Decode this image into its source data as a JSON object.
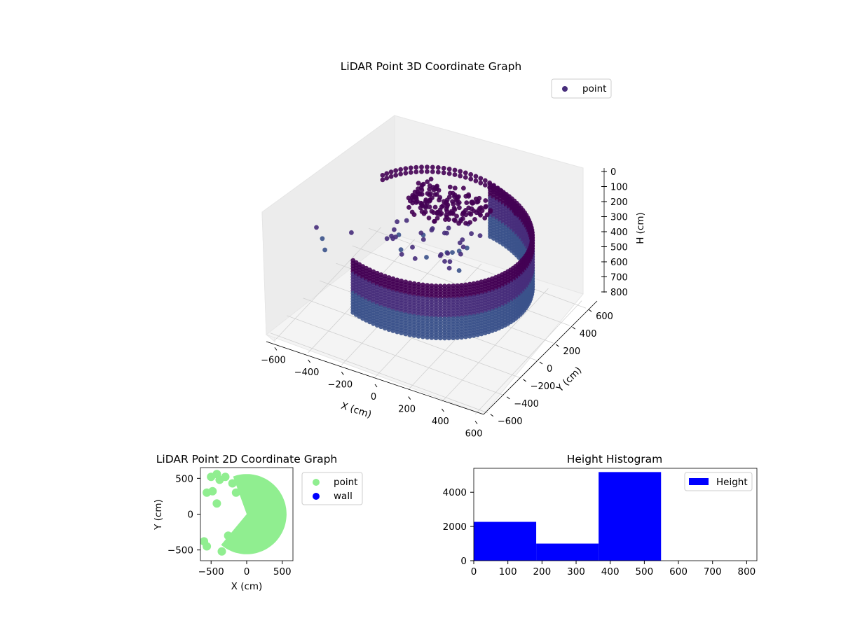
{
  "colors": {
    "viridis_dark": "#440154",
    "viridis_mid": "#3b528b",
    "viridis_blue": "#31688e",
    "viridis_teal": "#35b779",
    "point_2d": "#90ee90",
    "wall_2d": "#0000ff",
    "hist_bar": "#0000ff"
  },
  "chart_data": [
    {
      "type": "scatter",
      "projection": "3d",
      "title": "LiDAR Point 3D Coordinate Graph",
      "xlabel": "X (cm)",
      "ylabel": "Y (cm)",
      "zlabel": "H (cm)",
      "xticks": [
        "−600",
        "−400",
        "−200",
        "0",
        "200",
        "400",
        "600"
      ],
      "yticks": [
        "−600",
        "−400",
        "−200",
        "0",
        "200",
        "400",
        "600"
      ],
      "zticks": [
        "0",
        "100",
        "200",
        "300",
        "400",
        "500",
        "600",
        "700",
        "800"
      ],
      "xlim": [
        -650,
        650
      ],
      "ylim": [
        -650,
        650
      ],
      "zlim": [
        0,
        820
      ],
      "z_axis_inverted": true,
      "colormap": "viridis",
      "legend": {
        "entries": [
          "point"
        ],
        "placement": "top-right"
      },
      "series": [
        {
          "name": "point",
          "description_values": {
            "wall_ring": {
              "radius": 560,
              "h_range": [
                200,
                550
              ],
              "theta_deg": [
                -110,
                80
              ]
            },
            "ceiling_cluster": {
              "x_range": [
                -200,
                200
              ],
              "y_range": [
                100,
                400
              ],
              "h_range": [
                150,
                250
              ]
            },
            "scattered": [
              {
                "x": -620,
                "y": -100,
                "h": 400
              },
              {
                "x": -560,
                "y": -150,
                "h": 420
              },
              {
                "x": -520,
                "y": -200,
                "h": 450
              },
              {
                "x": -430,
                "y": -60,
                "h": 380
              }
            ]
          }
        }
      ]
    },
    {
      "type": "scatter",
      "title": "LiDAR Point 2D Coordinate Graph",
      "xlabel": "X (cm)",
      "ylabel": "Y (cm)",
      "xticks": [
        "−500",
        "0",
        "500"
      ],
      "yticks": [
        "500",
        "0",
        "−500"
      ],
      "xlim": [
        -650,
        650
      ],
      "ylim": [
        -650,
        650
      ],
      "legend": {
        "entries": [
          "point",
          "wall"
        ],
        "placement": "outside-right"
      },
      "series": [
        {
          "name": "point",
          "shape": "disc",
          "radius": 560,
          "theta_deg": [
            -130,
            110
          ]
        },
        {
          "name": "wall",
          "points": []
        }
      ]
    },
    {
      "type": "bar",
      "title": "Height Histogram",
      "xticks": [
        "0",
        "100",
        "200",
        "300",
        "400",
        "500",
        "600",
        "700",
        "800"
      ],
      "yticks": [
        "0",
        "2000",
        "4000"
      ],
      "xlim": [
        0,
        830
      ],
      "ylim": [
        0,
        5400
      ],
      "legend": {
        "entries": [
          "Height"
        ],
        "placement": "top-right"
      },
      "bins": [
        {
          "x0": 0,
          "x1": 183,
          "count": 2270
        },
        {
          "x0": 183,
          "x1": 366,
          "count": 1000
        },
        {
          "x0": 366,
          "x1": 549,
          "count": 5180
        },
        {
          "x0": 549,
          "x1": 732,
          "count": 0
        },
        {
          "x0": 732,
          "x1": 830,
          "count": 0
        }
      ]
    }
  ]
}
